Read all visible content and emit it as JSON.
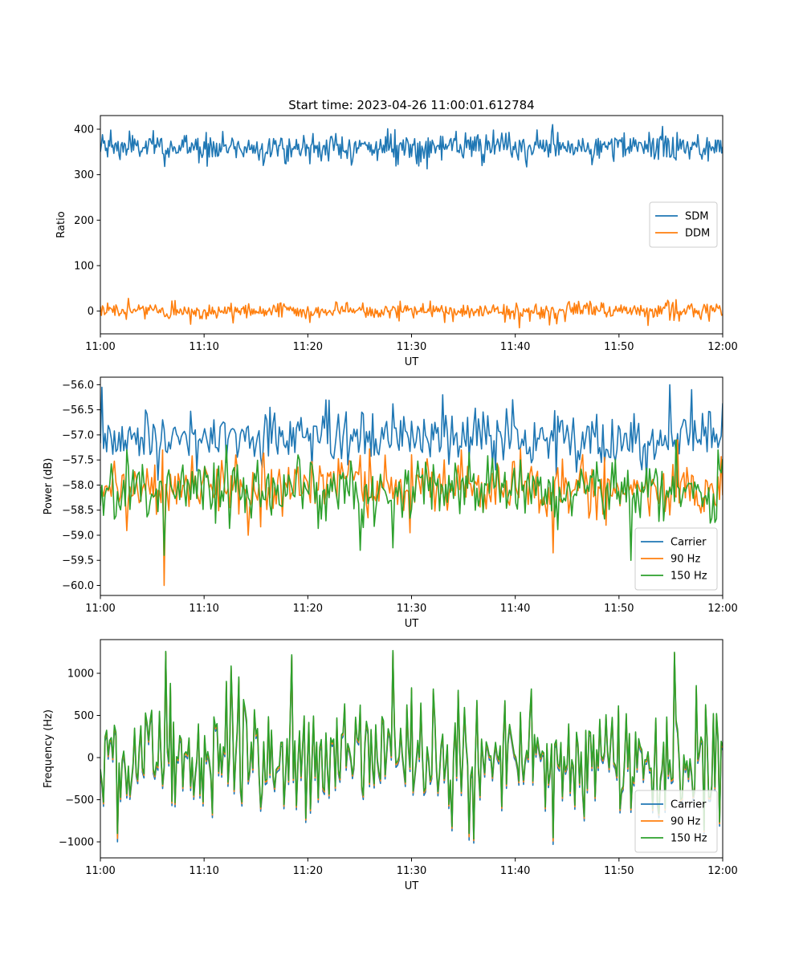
{
  "figure": {
    "title": "Start time: 2023-04-26 11:00:01.612784"
  },
  "colors": {
    "blue": "#1f77b4",
    "orange": "#ff7f0e",
    "green": "#2ca02c"
  },
  "chart_data": [
    {
      "type": "line",
      "title": "Start time: 2023-04-26 11:00:01.612784",
      "xlabel": "UT",
      "ylabel": "Ratio",
      "x_ticks": [
        "11:00",
        "11:10",
        "11:20",
        "11:30",
        "11:40",
        "11:50",
        "12:00"
      ],
      "x_range_minutes": [
        0,
        60
      ],
      "ylim": [
        -50,
        430
      ],
      "y_ticks": [
        0,
        100,
        200,
        300,
        400
      ],
      "y_tick_labels": [
        "0",
        "100",
        "200",
        "300",
        "400"
      ],
      "grid": false,
      "legend": "center-right",
      "series": [
        {
          "name": "SDM",
          "color": "#1f77b4",
          "approx_mean": 360,
          "approx_std": 15,
          "points_per_hour": 600,
          "peaks": [
            [
              1.0,
              398
            ],
            [
              2.8,
              396
            ],
            [
              10.2,
              393
            ],
            [
              28.4,
              399
            ],
            [
              43.6,
              410
            ],
            [
              54.2,
              406
            ],
            [
              59.8,
              375
            ]
          ],
          "troughs": [
            [
              6.2,
              318
            ],
            [
              17.8,
              325
            ],
            [
              36.8,
              320
            ],
            [
              47.4,
              322
            ],
            [
              58.6,
              330
            ]
          ]
        },
        {
          "name": "DDM",
          "color": "#ff7f0e",
          "approx_mean": 0,
          "approx_std": 9,
          "points_per_hour": 600,
          "peaks": [
            [
              2.7,
              28
            ],
            [
              31.8,
              22
            ],
            [
              45.2,
              21
            ],
            [
              54.8,
              19
            ],
            [
              58.5,
              15
            ]
          ],
          "troughs": [
            [
              12.8,
              -26
            ],
            [
              20.2,
              -25
            ],
            [
              33.2,
              -25
            ],
            [
              44.0,
              -28
            ],
            [
              55.8,
              -22
            ]
          ]
        }
      ]
    },
    {
      "type": "line",
      "title": "",
      "xlabel": "UT",
      "ylabel": "Power (dB)",
      "x_ticks": [
        "11:00",
        "11:10",
        "11:20",
        "11:30",
        "11:40",
        "11:50",
        "12:00"
      ],
      "x_range_minutes": [
        0,
        60
      ],
      "ylim": [
        -60.2,
        -55.85
      ],
      "y_ticks": [
        -60.0,
        -59.5,
        -59.0,
        -58.5,
        -58.0,
        -57.5,
        -57.0,
        -56.5,
        -56.0
      ],
      "y_tick_labels": [
        "−60.0",
        "−59.5",
        "−59.0",
        "−58.5",
        "−58.0",
        "−57.5",
        "−57.0",
        "−56.5",
        "−56.0"
      ],
      "grid": false,
      "legend": "lower-right",
      "series": [
        {
          "name": "Carrier",
          "color": "#1f77b4",
          "approx_mean": -57.05,
          "approx_std": 0.28,
          "points_per_hour": 400,
          "peaks": [
            [
              0.2,
              -56.05
            ],
            [
              33.0,
              -56.2
            ],
            [
              39.8,
              -56.3
            ],
            [
              54.9,
              -56.0
            ],
            [
              57.0,
              -56.1
            ]
          ],
          "troughs": [
            [
              5.5,
              -57.9
            ],
            [
              20.4,
              -57.7
            ],
            [
              44.0,
              -57.8
            ],
            [
              52.7,
              -57.9
            ]
          ]
        },
        {
          "name": "90 Hz",
          "color": "#ff7f0e",
          "approx_mean": -58.05,
          "approx_std": 0.28,
          "points_per_hour": 400,
          "peaks": [
            [
              6.0,
              -57.3
            ],
            [
              13.0,
              -57.4
            ],
            [
              34.8,
              -57.3
            ],
            [
              43.6,
              -57.3
            ],
            [
              55.7,
              -57.1
            ]
          ],
          "troughs": [
            [
              6.2,
              -60.0
            ],
            [
              14.2,
              -59.0
            ],
            [
              43.6,
              -59.35
            ],
            [
              48.8,
              -58.8
            ]
          ]
        },
        {
          "name": "150 Hz",
          "color": "#2ca02c",
          "approx_mean": -58.1,
          "approx_std": 0.3,
          "points_per_hour": 400,
          "peaks": [
            [
              2.5,
              -57.3
            ],
            [
              19.0,
              -57.4
            ],
            [
              40.5,
              -57.5
            ],
            [
              55.5,
              -57.1
            ],
            [
              59.6,
              -57.3
            ]
          ],
          "troughs": [
            [
              6.2,
              -59.4
            ],
            [
              25.0,
              -59.3
            ],
            [
              28.2,
              -59.25
            ],
            [
              51.2,
              -59.5
            ]
          ]
        }
      ]
    },
    {
      "type": "line",
      "title": "",
      "xlabel": "UT",
      "ylabel": "Frequency (Hz)",
      "x_ticks": [
        "11:00",
        "11:10",
        "11:20",
        "11:30",
        "11:40",
        "11:50",
        "12:00"
      ],
      "x_range_minutes": [
        0,
        60
      ],
      "ylim": [
        -1190,
        1400
      ],
      "y_ticks": [
        -1000,
        -500,
        0,
        500,
        1000
      ],
      "y_tick_labels": [
        "−1000",
        "−500",
        "0",
        "500",
        "1000"
      ],
      "grid": false,
      "legend": "lower-right",
      "series": [
        {
          "name": "Carrier",
          "color": "#1f77b4",
          "approx_mean": -30,
          "approx_std": 330,
          "points_per_hour": 400,
          "peaks": [
            [
              6.3,
              1240
            ],
            [
              18.5,
              1200
            ],
            [
              28.2,
              1250
            ],
            [
              55.4,
              1230
            ]
          ],
          "troughs": [
            [
              1.6,
              -1000
            ],
            [
              35.6,
              -980
            ],
            [
              43.7,
              -1030
            ]
          ]
        },
        {
          "name": "90 Hz",
          "color": "#ff7f0e",
          "approx_mean": 0,
          "approx_std": 330,
          "points_per_hour": 400,
          "peaks": [
            [
              6.3,
              1250
            ],
            [
              18.5,
              1210
            ],
            [
              28.2,
              1260
            ],
            [
              55.4,
              1240
            ]
          ],
          "troughs": [
            [
              1.6,
              -960
            ],
            [
              35.6,
              -940
            ],
            [
              43.7,
              -990
            ]
          ]
        },
        {
          "name": "150 Hz",
          "color": "#2ca02c",
          "approx_mean": 20,
          "approx_std": 330,
          "points_per_hour": 400,
          "peaks": [
            [
              6.3,
              1260
            ],
            [
              18.5,
              1220
            ],
            [
              28.2,
              1270
            ],
            [
              55.4,
              1250
            ]
          ],
          "troughs": [
            [
              1.6,
              -900
            ],
            [
              35.6,
              -900
            ],
            [
              43.7,
              -950
            ]
          ]
        }
      ]
    }
  ]
}
